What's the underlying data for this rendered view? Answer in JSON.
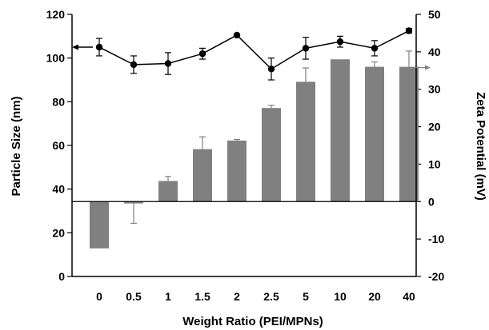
{
  "chart_data": {
    "type": "bar+line",
    "xlabel": "Weight Ratio (PEI/MPNs)",
    "ylabel_left": "Particle Size (nm)",
    "ylabel_right": "Zeta Potential (mV)",
    "categories": [
      "0",
      "0.5",
      "1",
      "1.5",
      "2",
      "2.5",
      "5",
      "10",
      "20",
      "40"
    ],
    "left_axis": {
      "min": 0,
      "max": 120,
      "ticks": [
        "0",
        "20",
        "40",
        "60",
        "80",
        "100",
        "120"
      ]
    },
    "right_axis": {
      "min": -20,
      "max": 50,
      "ticks": [
        "-20",
        "-10",
        "0",
        "10",
        "20",
        "30",
        "40",
        "50"
      ]
    },
    "bars": {
      "axis": "right",
      "values": [
        -12.5,
        -0.5,
        5.5,
        14,
        16.3,
        25,
        32,
        38,
        36,
        36
      ],
      "errors": [
        0,
        5.3,
        1.2,
        3.3,
        0.3,
        0.7,
        3.7,
        0,
        1.3,
        4.2
      ]
    },
    "line": {
      "axis": "left",
      "values": [
        105,
        97,
        97.5,
        102,
        110.5,
        95,
        104.5,
        107.5,
        104.5,
        112.5
      ],
      "errors": [
        4,
        4,
        5,
        2.5,
        0,
        5,
        5,
        2.5,
        3.5,
        1
      ]
    },
    "arrows": {
      "left_series": "left",
      "right_series": "right"
    },
    "colors": {
      "bar": "#808080",
      "line": "#000000",
      "axis": "#000000",
      "arrow_right": "#808080"
    }
  }
}
